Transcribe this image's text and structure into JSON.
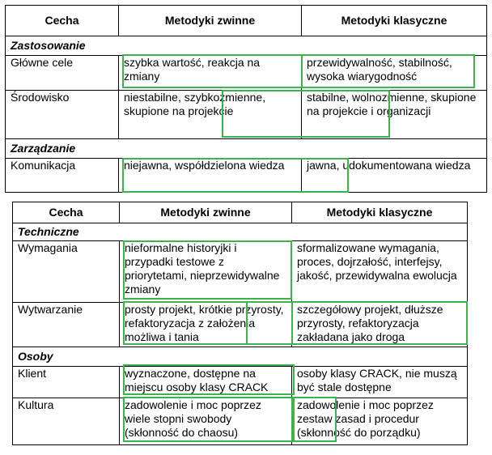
{
  "table1": {
    "headers": [
      "Cecha",
      "Metodyki zwinne",
      "Metodyki klasyczne"
    ],
    "sections": [
      {
        "title": "Zastosowanie",
        "rows": [
          {
            "feature": "Główne cele",
            "agile": "szybka wartość, reakcja na zmiany",
            "classic": "przewidywalność, stabilność, wysoka wiarygodność"
          },
          {
            "feature": "Środowisko",
            "agile": "niestabilne, szybkozmienne, skupione na projekcie",
            "classic": "stabilne, wolnozmienne, skupione na projekcie i organizacji"
          }
        ]
      },
      {
        "title": "Zarządzanie",
        "rows": [
          {
            "feature": "Komunikacja",
            "agile": "niejawna, współdzielona wiedza",
            "classic": "jawna, udokumentowana wiedza"
          }
        ]
      }
    ]
  },
  "table2": {
    "headers": [
      "Cecha",
      "Metodyki zwinne",
      "Metodyki klasyczne"
    ],
    "sections": [
      {
        "title": "Techniczne",
        "rows": [
          {
            "feature": "Wymagania",
            "agile": "nieformalne historyjki i przypadki testowe z priorytetami, nieprzewidywalne zmiany",
            "classic": "sformalizowane wymagania, proces, dojrzałość, interfejsy, jakość, przewidywalna ewolucja"
          },
          {
            "feature": "Wytwarzanie",
            "agile": "prosty projekt, krótkie przyrosty, refaktoryzacja z założenia możliwa i tania",
            "classic": "szczegółowy projekt, dłuższe przyrosty, refaktoryzacja zakładana jako droga"
          }
        ]
      },
      {
        "title": "Osoby",
        "rows": [
          {
            "feature": "Klient",
            "agile": "wyznaczone, dostępne na miejscu osoby klasy CRACK",
            "classic": "osoby klasy CRACK, nie muszą być stale dostępne"
          },
          {
            "feature": "Kultura",
            "agile": "zadowolenie i moc poprzez wiele stopni swobody (skłonność do chaosu)",
            "classic": "zadowolenie i moc poprzez zestaw zasad i procedur (skłonność do porządku)"
          }
        ]
      }
    ]
  },
  "colors": {
    "highlight": "#3cb44b"
  }
}
